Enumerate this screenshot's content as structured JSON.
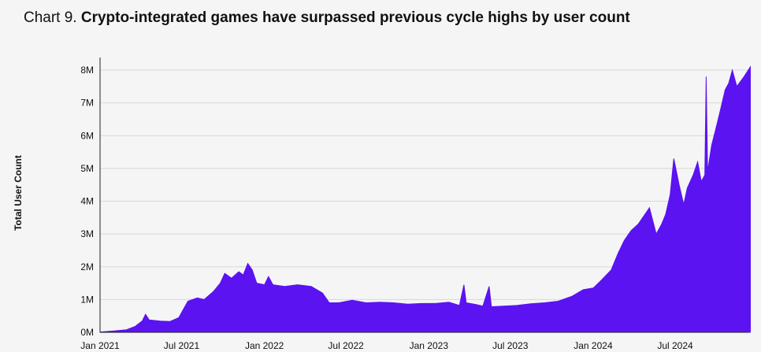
{
  "chart_data": {
    "type": "area",
    "title_prefix": "Chart 9.",
    "title": "Crypto-integrated games have surpassed previous cycle highs by user count",
    "xlabel": "",
    "ylabel": "Total User Count",
    "color": "#5b13f1",
    "grid": true,
    "x_range": [
      "2021-01-01",
      "2024-12-15"
    ],
    "ylim": [
      0,
      8500000
    ],
    "y_ticks": [
      {
        "value": 0,
        "label": "0M"
      },
      {
        "value": 1000000,
        "label": "1M"
      },
      {
        "value": 2000000,
        "label": "2M"
      },
      {
        "value": 3000000,
        "label": "3M"
      },
      {
        "value": 4000000,
        "label": "4M"
      },
      {
        "value": 5000000,
        "label": "5M"
      },
      {
        "value": 6000000,
        "label": "6M"
      },
      {
        "value": 7000000,
        "label": "7M"
      },
      {
        "value": 8000000,
        "label": "8M"
      }
    ],
    "x_ticks": [
      {
        "value": "2021-01-01",
        "label": "Jan 2021"
      },
      {
        "value": "2021-07-01",
        "label": "Jul 2021"
      },
      {
        "value": "2022-01-01",
        "label": "Jan 2022"
      },
      {
        "value": "2022-07-01",
        "label": "Jul 2022"
      },
      {
        "value": "2023-01-01",
        "label": "Jan 2023"
      },
      {
        "value": "2023-07-01",
        "label": "Jul 2023"
      },
      {
        "value": "2024-01-01",
        "label": "Jan 2024"
      },
      {
        "value": "2024-07-01",
        "label": "Jul 2024"
      }
    ],
    "points": [
      [
        "2021-01-01",
        10000
      ],
      [
        "2021-02-01",
        40000
      ],
      [
        "2021-03-01",
        80000
      ],
      [
        "2021-03-20",
        180000
      ],
      [
        "2021-04-05",
        350000
      ],
      [
        "2021-04-12",
        550000
      ],
      [
        "2021-04-20",
        380000
      ],
      [
        "2021-05-15",
        340000
      ],
      [
        "2021-06-05",
        330000
      ],
      [
        "2021-06-25",
        450000
      ],
      [
        "2021-07-15",
        950000
      ],
      [
        "2021-08-05",
        1050000
      ],
      [
        "2021-08-20",
        1000000
      ],
      [
        "2021-09-10",
        1250000
      ],
      [
        "2021-09-25",
        1500000
      ],
      [
        "2021-10-05",
        1800000
      ],
      [
        "2021-10-20",
        1650000
      ],
      [
        "2021-11-05",
        1850000
      ],
      [
        "2021-11-15",
        1750000
      ],
      [
        "2021-11-25",
        2100000
      ],
      [
        "2021-12-05",
        1900000
      ],
      [
        "2021-12-15",
        1500000
      ],
      [
        "2022-01-01",
        1450000
      ],
      [
        "2022-01-10",
        1700000
      ],
      [
        "2022-01-20",
        1450000
      ],
      [
        "2022-02-15",
        1400000
      ],
      [
        "2022-03-15",
        1450000
      ],
      [
        "2022-04-15",
        1400000
      ],
      [
        "2022-05-10",
        1200000
      ],
      [
        "2022-05-25",
        900000
      ],
      [
        "2022-06-15",
        900000
      ],
      [
        "2022-07-15",
        980000
      ],
      [
        "2022-08-15",
        900000
      ],
      [
        "2022-09-15",
        920000
      ],
      [
        "2022-10-15",
        900000
      ],
      [
        "2022-11-15",
        860000
      ],
      [
        "2022-12-15",
        880000
      ],
      [
        "2023-01-15",
        880000
      ],
      [
        "2023-02-15",
        920000
      ],
      [
        "2023-03-10",
        820000
      ],
      [
        "2023-03-20",
        1450000
      ],
      [
        "2023-03-25",
        900000
      ],
      [
        "2023-04-15",
        850000
      ],
      [
        "2023-05-01",
        800000
      ],
      [
        "2023-05-15",
        1400000
      ],
      [
        "2023-05-20",
        780000
      ],
      [
        "2023-06-15",
        800000
      ],
      [
        "2023-07-15",
        820000
      ],
      [
        "2023-08-15",
        870000
      ],
      [
        "2023-09-15",
        900000
      ],
      [
        "2023-10-15",
        950000
      ],
      [
        "2023-11-15",
        1100000
      ],
      [
        "2023-12-10",
        1300000
      ],
      [
        "2024-01-01",
        1350000
      ],
      [
        "2024-01-20",
        1600000
      ],
      [
        "2024-02-10",
        1900000
      ],
      [
        "2024-02-25",
        2400000
      ],
      [
        "2024-03-10",
        2800000
      ],
      [
        "2024-03-25",
        3100000
      ],
      [
        "2024-04-10",
        3300000
      ],
      [
        "2024-04-25",
        3600000
      ],
      [
        "2024-05-05",
        3800000
      ],
      [
        "2024-05-20",
        3000000
      ],
      [
        "2024-06-01",
        3300000
      ],
      [
        "2024-06-10",
        3600000
      ],
      [
        "2024-06-20",
        4200000
      ],
      [
        "2024-06-28",
        5300000
      ],
      [
        "2024-07-10",
        4500000
      ],
      [
        "2024-07-20",
        3900000
      ],
      [
        "2024-07-28",
        4400000
      ],
      [
        "2024-08-10",
        4800000
      ],
      [
        "2024-08-20",
        5200000
      ],
      [
        "2024-08-28",
        4600000
      ],
      [
        "2024-09-05",
        4800000
      ],
      [
        "2024-09-08",
        7800000
      ],
      [
        "2024-09-11",
        4900000
      ],
      [
        "2024-09-20",
        5700000
      ],
      [
        "2024-10-01",
        6300000
      ],
      [
        "2024-10-10",
        6800000
      ],
      [
        "2024-10-20",
        7400000
      ],
      [
        "2024-10-28",
        7600000
      ],
      [
        "2024-11-05",
        8000000
      ],
      [
        "2024-11-15",
        7500000
      ],
      [
        "2024-12-01",
        7800000
      ],
      [
        "2024-12-15",
        8100000
      ]
    ]
  }
}
